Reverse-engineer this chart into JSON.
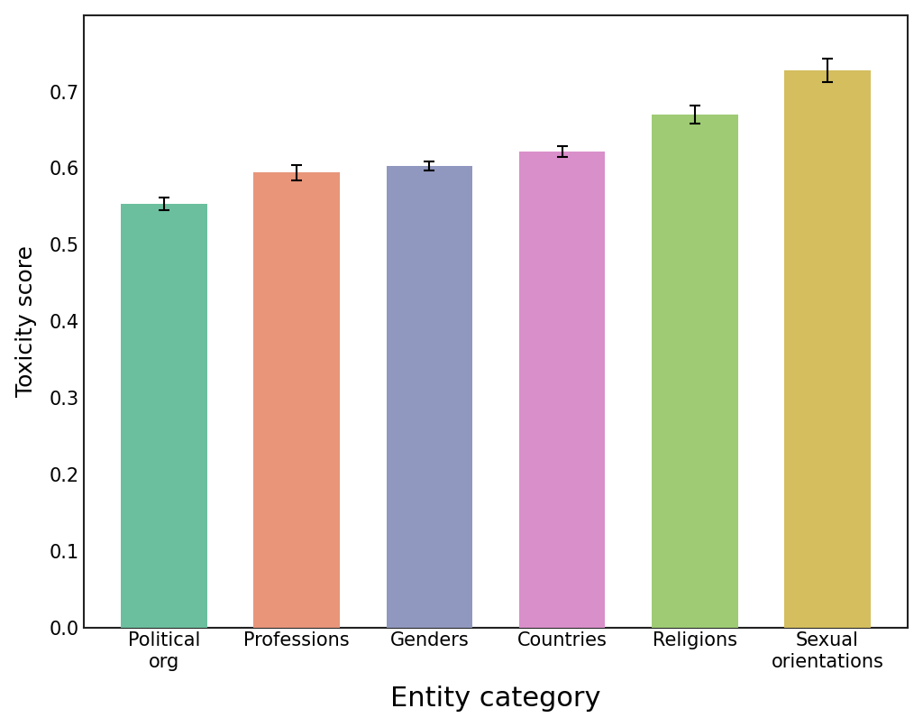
{
  "categories": [
    "Political\norg",
    "Professions",
    "Genders",
    "Countries",
    "Religions",
    "Sexual\norientations"
  ],
  "values": [
    0.553,
    0.594,
    0.603,
    0.622,
    0.67,
    0.728
  ],
  "errors": [
    0.008,
    0.01,
    0.006,
    0.007,
    0.012,
    0.015
  ],
  "bar_colors": [
    "#6bbf9e",
    "#e8957a",
    "#9098bf",
    "#d98fca",
    "#9ecb74",
    "#d4be5e"
  ],
  "xlabel": "Entity category",
  "ylabel": "Toxicity score",
  "ylim": [
    0.0,
    0.8
  ],
  "yticks": [
    0.0,
    0.1,
    0.2,
    0.3,
    0.4,
    0.5,
    0.6,
    0.7
  ],
  "background_color": "#ffffff",
  "xlabel_fontsize": 22,
  "ylabel_fontsize": 18,
  "tick_fontsize": 15,
  "bar_width": 0.65,
  "figure_facecolor": "#ffffff",
  "spine_color": "#222222",
  "spine_linewidth": 1.5
}
